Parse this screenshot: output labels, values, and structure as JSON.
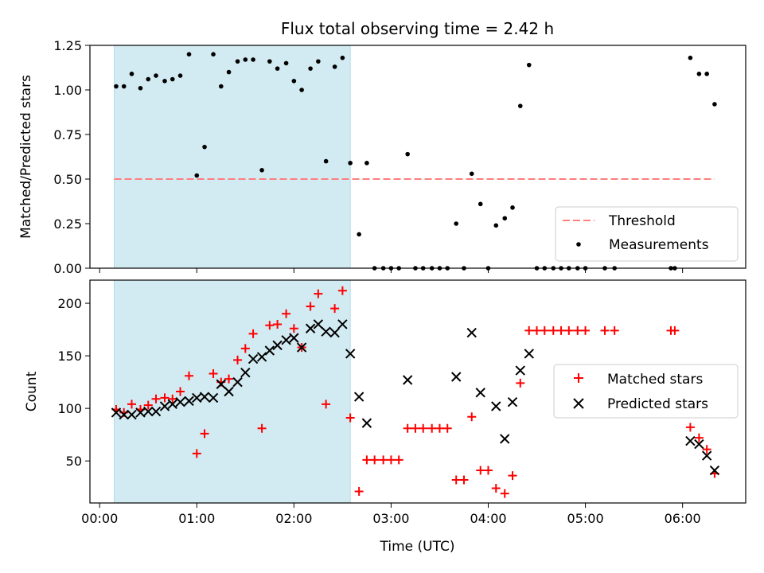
{
  "title": "Flux total observing time = 2.42 h",
  "colors": {
    "shade": "#add8e6",
    "threshold": "#ff7f7f",
    "measurement": "#000000",
    "matched": "#ff0000",
    "predicted": "#000000"
  },
  "chart_data": [
    {
      "type": "scatter",
      "ylabel": "Matched/Predicted stars",
      "xlim": [
        -0.1,
        6.65
      ],
      "ylim": [
        0,
        1.25
      ],
      "yticks": [
        0.0,
        0.25,
        0.5,
        0.75,
        1.0,
        1.25
      ],
      "ytick_labels": [
        "0.00",
        "0.25",
        "0.50",
        "0.75",
        "1.00",
        "1.25"
      ],
      "shaded_span": [
        0.15,
        2.58
      ],
      "threshold": {
        "name": "Threshold",
        "value": 0.5,
        "x": [
          0.15,
          6.33
        ]
      },
      "legend": [
        "Threshold",
        "Measurements"
      ],
      "legend_loc": "lower-right",
      "series": [
        {
          "name": "Measurements",
          "x": [
            0.17,
            0.25,
            0.33,
            0.42,
            0.5,
            0.58,
            0.67,
            0.75,
            0.83,
            0.92,
            1.0,
            1.08,
            1.17,
            1.25,
            1.33,
            1.42,
            1.5,
            1.58,
            1.67,
            1.75,
            1.83,
            1.92,
            2.0,
            2.08,
            2.17,
            2.25,
            2.33,
            2.42,
            2.5,
            2.58,
            2.67,
            2.75,
            2.83,
            2.92,
            3.0,
            3.08,
            3.17,
            3.25,
            3.33,
            3.42,
            3.5,
            3.58,
            3.67,
            3.75,
            3.83,
            3.92,
            4.0,
            4.08,
            4.17,
            4.25,
            4.33,
            4.42,
            4.5,
            4.58,
            4.67,
            4.75,
            4.83,
            4.92,
            5.0,
            5.2,
            5.3,
            5.88,
            5.92,
            6.08,
            6.17,
            6.25,
            6.33
          ],
          "y": [
            1.02,
            1.02,
            1.09,
            1.01,
            1.06,
            1.08,
            1.05,
            1.06,
            1.08,
            1.2,
            0.52,
            0.68,
            1.2,
            1.02,
            1.1,
            1.16,
            1.17,
            1.17,
            0.55,
            1.16,
            1.12,
            1.15,
            1.05,
            1.0,
            1.12,
            1.16,
            0.6,
            1.13,
            1.18,
            0.59,
            0.19,
            0.59,
            0.0,
            0.0,
            0.0,
            0.0,
            0.64,
            0.0,
            0.0,
            0.0,
            0.0,
            0.0,
            0.25,
            0.0,
            0.53,
            0.36,
            0.0,
            0.24,
            0.28,
            0.34,
            0.91,
            1.14,
            0.0,
            0.0,
            0.0,
            0.0,
            0.0,
            0.0,
            0.0,
            0.0,
            0.0,
            0.0,
            0.0,
            1.18,
            1.09,
            1.09,
            0.92
          ]
        }
      ]
    },
    {
      "type": "scatter",
      "ylabel": "Count",
      "xlabel": "Time (UTC)",
      "xlim": [
        -0.1,
        6.65
      ],
      "ylim": [
        10,
        222
      ],
      "yticks": [
        50,
        100,
        150,
        200
      ],
      "ytick_labels": [
        "50",
        "100",
        "150",
        "200"
      ],
      "xticks": [
        0,
        1,
        2,
        3,
        4,
        5,
        6
      ],
      "xtick_labels": [
        "00:00",
        "01:00",
        "02:00",
        "03:00",
        "04:00",
        "05:00",
        "06:00"
      ],
      "shaded_span": [
        0.15,
        2.58
      ],
      "legend": [
        "Matched stars",
        "Predicted stars"
      ],
      "legend_loc": "center-right",
      "series": [
        {
          "name": "Matched stars",
          "x": [
            0.17,
            0.25,
            0.33,
            0.42,
            0.5,
            0.58,
            0.67,
            0.75,
            0.83,
            0.92,
            1.0,
            1.08,
            1.17,
            1.25,
            1.33,
            1.42,
            1.5,
            1.58,
            1.67,
            1.75,
            1.83,
            1.92,
            2.0,
            2.08,
            2.17,
            2.25,
            2.33,
            2.42,
            2.5,
            2.58,
            2.67,
            2.75,
            2.83,
            2.92,
            3.0,
            3.08,
            3.17,
            3.25,
            3.33,
            3.42,
            3.5,
            3.58,
            3.67,
            3.75,
            3.83,
            3.92,
            4.0,
            4.08,
            4.17,
            4.25,
            4.33,
            4.42,
            4.5,
            4.58,
            4.67,
            4.75,
            4.83,
            4.92,
            5.0,
            5.2,
            5.3,
            5.88,
            5.92,
            6.08,
            6.17,
            6.25,
            6.33
          ],
          "y": [
            99,
            96,
            104,
            99,
            103,
            109,
            110,
            109,
            116,
            131,
            57,
            76,
            133,
            125,
            128,
            146,
            157,
            171,
            81,
            179,
            180,
            190,
            176,
            158,
            197,
            209,
            104,
            195,
            212,
            91,
            21,
            51,
            51,
            51,
            51,
            51,
            81,
            81,
            81,
            81,
            81,
            81,
            32,
            32,
            92,
            41,
            41,
            24,
            19,
            36,
            124,
            174,
            174,
            174,
            174,
            174,
            174,
            174,
            174,
            174,
            174,
            174,
            174,
            82,
            72,
            61,
            38
          ]
        },
        {
          "name": "Predicted stars",
          "x": [
            0.17,
            0.25,
            0.33,
            0.42,
            0.5,
            0.58,
            0.67,
            0.75,
            0.83,
            0.92,
            1.0,
            1.08,
            1.17,
            1.25,
            1.33,
            1.42,
            1.5,
            1.58,
            1.67,
            1.75,
            1.83,
            1.92,
            2.0,
            2.08,
            2.17,
            2.25,
            2.33,
            2.42,
            2.5,
            2.58,
            2.67,
            2.75,
            3.17,
            3.67,
            3.83,
            3.92,
            4.08,
            4.17,
            4.25,
            4.33,
            4.42,
            6.08,
            6.17,
            6.25,
            6.33
          ],
          "y": [
            96,
            94,
            94,
            96,
            97,
            97,
            102,
            104,
            106,
            107,
            110,
            111,
            110,
            123,
            116,
            125,
            134,
            147,
            149,
            155,
            160,
            165,
            167,
            158,
            176,
            180,
            173,
            172,
            180,
            152,
            111,
            86,
            127,
            130,
            172,
            115,
            102,
            71,
            106,
            136,
            152,
            69,
            66,
            55,
            41
          ]
        }
      ]
    }
  ]
}
